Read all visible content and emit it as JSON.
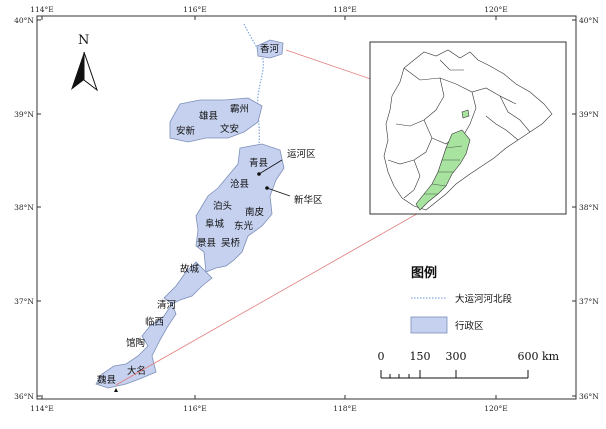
{
  "map": {
    "x_ticks": [
      "114°E",
      "116°E",
      "118°E",
      "120°E"
    ],
    "y_ticks": [
      "40°N",
      "39°N",
      "38°N",
      "37°N",
      "36°N"
    ],
    "north_label": "N",
    "region_color": "#c5d1ee",
    "river_color": "#82a8df",
    "connector_color": "#e07b7b",
    "inset_highlight_color": "#a8e3a0",
    "counties": [
      {
        "name": "香河"
      },
      {
        "name": "霸州"
      },
      {
        "name": "雄县"
      },
      {
        "name": "文安"
      },
      {
        "name": "安新"
      },
      {
        "name": "青县"
      },
      {
        "name": "沧县"
      },
      {
        "name": "泊头"
      },
      {
        "name": "南皮"
      },
      {
        "name": "阜城"
      },
      {
        "name": "东光"
      },
      {
        "name": "景县"
      },
      {
        "name": "吴桥"
      },
      {
        "name": "故城"
      },
      {
        "name": "清河"
      },
      {
        "name": "临西"
      },
      {
        "name": "馆陶"
      },
      {
        "name": "大名"
      },
      {
        "name": "魏县"
      }
    ],
    "callouts": [
      "运河区",
      "新华区"
    ]
  },
  "legend": {
    "title": "图例",
    "items": [
      {
        "label": "大运河河北段",
        "symbol": "river-line"
      },
      {
        "label": "行政区",
        "symbol": "region-fill"
      }
    ]
  },
  "scale_bar": {
    "labels": [
      "0",
      "150",
      "300",
      "600"
    ],
    "unit": "km"
  }
}
